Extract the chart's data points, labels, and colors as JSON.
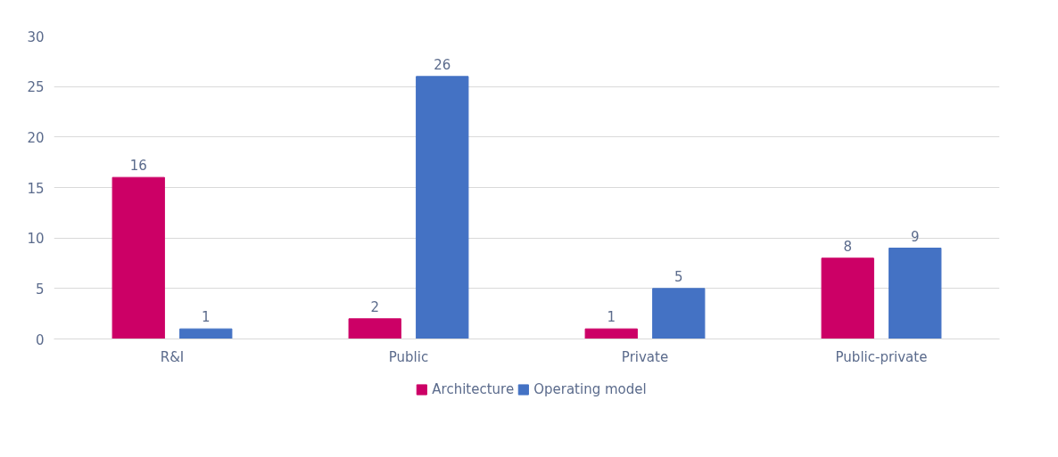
{
  "chart_data": {
    "type": "bar",
    "categories": [
      "R&I",
      "Public",
      "Private",
      "Public-private"
    ],
    "series": [
      {
        "name": "Architecture",
        "color": "#cc0066",
        "values": [
          16,
          2,
          1,
          8
        ]
      },
      {
        "name": "Operating model",
        "color": "#4472c4",
        "values": [
          1,
          26,
          5,
          9
        ]
      }
    ],
    "ylim": [
      0,
      30
    ],
    "yticks": [
      0,
      5,
      10,
      15,
      20,
      25,
      30
    ],
    "grid": "y",
    "legend": "bottom",
    "data_labels": true
  }
}
